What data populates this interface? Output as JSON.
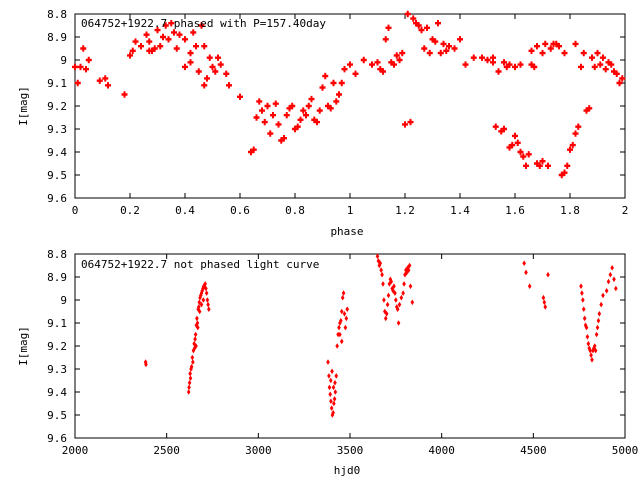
{
  "chart_data": [
    {
      "type": "scatter",
      "title": "064752+1922.7 phased with P=157.40day",
      "xlabel": "phase",
      "ylabel": "I[mag]",
      "xlim": [
        0,
        2
      ],
      "ylim": [
        8.8,
        9.6
      ],
      "y_inverted": true,
      "grid": false,
      "marker_color": "#ff0000",
      "marker": "cross-plus",
      "xticks": [
        "0",
        "0.2",
        "0.4",
        "0.6",
        "0.8",
        "1",
        "1.2",
        "1.4",
        "1.6",
        "1.8",
        "2"
      ],
      "yticks": [
        "8.8",
        "8.9",
        "9",
        "9.1",
        "9.2",
        "9.3",
        "9.4",
        "9.5",
        "9.6"
      ],
      "points": [
        [
          0.0,
          9.03
        ],
        [
          0.01,
          9.1
        ],
        [
          0.02,
          9.03
        ],
        [
          0.03,
          8.95
        ],
        [
          0.04,
          9.04
        ],
        [
          0.05,
          9.0
        ],
        [
          0.09,
          9.09
        ],
        [
          0.12,
          9.11
        ],
        [
          0.11,
          9.08
        ],
        [
          0.18,
          9.15
        ],
        [
          0.2,
          8.98
        ],
        [
          0.21,
          8.96
        ],
        [
          0.22,
          8.92
        ],
        [
          0.24,
          8.94
        ],
        [
          0.26,
          8.89
        ],
        [
          0.27,
          8.92
        ],
        [
          0.28,
          8.96
        ],
        [
          0.29,
          8.95
        ],
        [
          0.3,
          8.87
        ],
        [
          0.32,
          8.9
        ],
        [
          0.33,
          8.85
        ],
        [
          0.35,
          8.84
        ],
        [
          0.36,
          8.88
        ],
        [
          0.38,
          8.89
        ],
        [
          0.4,
          8.91
        ],
        [
          0.42,
          8.97
        ],
        [
          0.43,
          8.88
        ],
        [
          0.44,
          8.94
        ],
        [
          0.46,
          8.85
        ],
        [
          0.47,
          8.94
        ],
        [
          0.49,
          8.99
        ],
        [
          0.5,
          9.03
        ],
        [
          0.51,
          9.05
        ],
        [
          0.52,
          8.99
        ],
        [
          0.53,
          9.02
        ],
        [
          0.55,
          9.06
        ],
        [
          0.56,
          9.11
        ],
        [
          0.48,
          9.08
        ],
        [
          0.47,
          9.11
        ],
        [
          0.45,
          9.05
        ],
        [
          0.42,
          9.01
        ],
        [
          0.4,
          9.03
        ],
        [
          0.37,
          8.95
        ],
        [
          0.34,
          8.91
        ],
        [
          0.31,
          8.94
        ],
        [
          0.27,
          8.96
        ],
        [
          0.6,
          9.16
        ],
        [
          0.64,
          9.4
        ],
        [
          0.65,
          9.39
        ],
        [
          0.66,
          9.25
        ],
        [
          0.67,
          9.18
        ],
        [
          0.68,
          9.22
        ],
        [
          0.69,
          9.27
        ],
        [
          0.7,
          9.2
        ],
        [
          0.71,
          9.32
        ],
        [
          0.72,
          9.24
        ],
        [
          0.73,
          9.19
        ],
        [
          0.74,
          9.28
        ],
        [
          0.75,
          9.35
        ],
        [
          0.76,
          9.34
        ],
        [
          0.77,
          9.24
        ],
        [
          0.78,
          9.21
        ],
        [
          0.79,
          9.2
        ],
        [
          0.8,
          9.3
        ],
        [
          0.81,
          9.29
        ],
        [
          0.82,
          9.26
        ],
        [
          0.83,
          9.22
        ],
        [
          0.84,
          9.24
        ],
        [
          0.85,
          9.2
        ],
        [
          0.86,
          9.17
        ],
        [
          0.87,
          9.26
        ],
        [
          0.88,
          9.27
        ],
        [
          0.89,
          9.22
        ],
        [
          0.9,
          9.12
        ],
        [
          0.91,
          9.07
        ],
        [
          0.92,
          9.2
        ],
        [
          0.93,
          9.21
        ],
        [
          0.94,
          9.1
        ],
        [
          0.95,
          9.18
        ],
        [
          0.96,
          9.15
        ],
        [
          0.97,
          9.1
        ],
        [
          0.98,
          9.04
        ],
        [
          1.0,
          9.02
        ],
        [
          1.02,
          9.06
        ],
        [
          1.05,
          9.0
        ],
        [
          1.08,
          9.02
        ],
        [
          1.1,
          9.01
        ],
        [
          1.11,
          9.04
        ],
        [
          1.12,
          9.05
        ],
        [
          1.13,
          8.91
        ],
        [
          1.14,
          8.86
        ],
        [
          1.15,
          9.01
        ],
        [
          1.16,
          9.02
        ],
        [
          1.17,
          8.98
        ],
        [
          1.18,
          9.0
        ],
        [
          1.19,
          8.97
        ],
        [
          1.2,
          9.28
        ],
        [
          1.21,
          8.8
        ],
        [
          1.22,
          9.27
        ],
        [
          1.23,
          8.82
        ],
        [
          1.24,
          8.84
        ],
        [
          1.25,
          8.85
        ],
        [
          1.26,
          8.87
        ],
        [
          1.27,
          8.95
        ],
        [
          1.28,
          8.86
        ],
        [
          1.29,
          8.97
        ],
        [
          1.3,
          8.91
        ],
        [
          1.31,
          8.92
        ],
        [
          1.32,
          8.84
        ],
        [
          1.33,
          8.97
        ],
        [
          1.34,
          8.93
        ],
        [
          1.35,
          8.96
        ],
        [
          1.36,
          8.94
        ],
        [
          1.38,
          8.95
        ],
        [
          1.4,
          8.91
        ],
        [
          1.42,
          9.02
        ],
        [
          1.45,
          8.99
        ],
        [
          1.48,
          8.99
        ],
        [
          1.5,
          9.0
        ],
        [
          1.52,
          9.01
        ],
        [
          1.53,
          9.29
        ],
        [
          1.54,
          9.05
        ],
        [
          1.55,
          9.31
        ],
        [
          1.56,
          9.3
        ],
        [
          1.57,
          9.03
        ],
        [
          1.58,
          9.38
        ],
        [
          1.59,
          9.37
        ],
        [
          1.6,
          9.33
        ],
        [
          1.61,
          9.36
        ],
        [
          1.62,
          9.4
        ],
        [
          1.63,
          9.42
        ],
        [
          1.64,
          9.46
        ],
        [
          1.65,
          9.41
        ],
        [
          1.66,
          8.96
        ],
        [
          1.67,
          9.03
        ],
        [
          1.68,
          9.45
        ],
        [
          1.69,
          9.46
        ],
        [
          1.7,
          9.44
        ],
        [
          1.71,
          8.93
        ],
        [
          1.72,
          9.46
        ],
        [
          1.73,
          8.95
        ],
        [
          1.74,
          8.93
        ],
        [
          1.76,
          8.94
        ],
        [
          1.77,
          9.5
        ],
        [
          1.78,
          9.49
        ],
        [
          1.79,
          9.46
        ],
        [
          1.8,
          9.39
        ],
        [
          1.81,
          9.37
        ],
        [
          1.82,
          9.32
        ],
        [
          1.83,
          9.29
        ],
        [
          1.84,
          9.03
        ],
        [
          1.85,
          8.97
        ],
        [
          1.86,
          9.22
        ],
        [
          1.87,
          9.21
        ],
        [
          1.88,
          8.99
        ],
        [
          1.89,
          9.03
        ],
        [
          1.9,
          8.97
        ],
        [
          1.91,
          9.02
        ],
        [
          1.92,
          8.99
        ],
        [
          1.93,
          9.04
        ],
        [
          1.94,
          9.01
        ],
        [
          1.95,
          9.02
        ],
        [
          1.96,
          9.05
        ],
        [
          1.97,
          9.06
        ],
        [
          1.98,
          9.1
        ],
        [
          1.99,
          9.08
        ],
        [
          1.52,
          8.99
        ],
        [
          1.56,
          9.01
        ],
        [
          1.58,
          9.02
        ],
        [
          1.62,
          9.02
        ],
        [
          1.68,
          8.94
        ],
        [
          1.7,
          8.97
        ],
        [
          1.75,
          8.93
        ],
        [
          1.78,
          8.97
        ],
        [
          1.82,
          8.93
        ],
        [
          1.6,
          9.03
        ],
        [
          1.66,
          9.02
        ]
      ]
    },
    {
      "type": "scatter",
      "title": "064752+1922.7 not phased light curve",
      "xlabel": "hjd0",
      "ylabel": "I[mag]",
      "xlim": [
        2000,
        5000
      ],
      "ylim": [
        8.8,
        9.6
      ],
      "y_inverted": true,
      "grid": false,
      "marker_color": "#ff0000",
      "marker": "diamond",
      "xticks": [
        "2000",
        "2500",
        "3000",
        "3500",
        "4000",
        "4500",
        "5000"
      ],
      "yticks": [
        "8.8",
        "8.9",
        "9",
        "9.1",
        "9.2",
        "9.3",
        "9.4",
        "9.5",
        "9.6"
      ],
      "points": [
        [
          2385,
          9.27
        ],
        [
          2387,
          9.28
        ],
        [
          2620,
          9.4
        ],
        [
          2622,
          9.38
        ],
        [
          2625,
          9.36
        ],
        [
          2628,
          9.32
        ],
        [
          2630,
          9.34
        ],
        [
          2633,
          9.3
        ],
        [
          2636,
          9.29
        ],
        [
          2640,
          9.25
        ],
        [
          2643,
          9.27
        ],
        [
          2646,
          9.22
        ],
        [
          2650,
          9.19
        ],
        [
          2652,
          9.21
        ],
        [
          2655,
          9.17
        ],
        [
          2658,
          9.15
        ],
        [
          2662,
          9.11
        ],
        [
          2665,
          9.08
        ],
        [
          2668,
          9.1
        ],
        [
          2672,
          9.04
        ],
        [
          2675,
          9.03
        ],
        [
          2678,
          9.01
        ],
        [
          2682,
          8.99
        ],
        [
          2686,
          8.98
        ],
        [
          2690,
          8.97
        ],
        [
          2694,
          8.96
        ],
        [
          2698,
          8.95
        ],
        [
          2702,
          8.94
        ],
        [
          2706,
          8.94
        ],
        [
          2710,
          8.93
        ],
        [
          2714,
          8.95
        ],
        [
          2718,
          8.97
        ],
        [
          2722,
          9.0
        ],
        [
          2726,
          9.02
        ],
        [
          2730,
          9.04
        ],
        [
          2700,
          9.0
        ],
        [
          2690,
          9.02
        ],
        [
          2680,
          9.05
        ],
        [
          2670,
          9.12
        ],
        [
          2660,
          9.2
        ],
        [
          3380,
          9.27
        ],
        [
          3385,
          9.33
        ],
        [
          3388,
          9.38
        ],
        [
          3392,
          9.41
        ],
        [
          3396,
          9.44
        ],
        [
          3400,
          9.47
        ],
        [
          3404,
          9.5
        ],
        [
          3408,
          9.49
        ],
        [
          3412,
          9.45
        ],
        [
          3416,
          9.43
        ],
        [
          3420,
          9.4
        ],
        [
          3425,
          9.33
        ],
        [
          3430,
          9.2
        ],
        [
          3435,
          9.15
        ],
        [
          3440,
          9.12
        ],
        [
          3445,
          9.1
        ],
        [
          3450,
          9.09
        ],
        [
          3455,
          9.05
        ],
        [
          3460,
          8.99
        ],
        [
          3465,
          8.97
        ],
        [
          3470,
          9.06
        ],
        [
          3475,
          9.12
        ],
        [
          3480,
          9.08
        ],
        [
          3485,
          9.04
        ],
        [
          3395,
          9.35
        ],
        [
          3402,
          9.31
        ],
        [
          3410,
          9.38
        ],
        [
          3418,
          9.36
        ],
        [
          3445,
          9.15
        ],
        [
          3455,
          9.18
        ],
        [
          3650,
          8.81
        ],
        [
          3655,
          8.83
        ],
        [
          3660,
          8.85
        ],
        [
          3665,
          8.84
        ],
        [
          3670,
          8.87
        ],
        [
          3675,
          8.89
        ],
        [
          3680,
          8.93
        ],
        [
          3685,
          9.0
        ],
        [
          3690,
          9.05
        ],
        [
          3695,
          9.08
        ],
        [
          3700,
          9.06
        ],
        [
          3705,
          9.02
        ],
        [
          3710,
          8.98
        ],
        [
          3715,
          8.93
        ],
        [
          3720,
          8.91
        ],
        [
          3725,
          8.92
        ],
        [
          3730,
          8.95
        ],
        [
          3735,
          8.96
        ],
        [
          3740,
          8.94
        ],
        [
          3745,
          8.97
        ],
        [
          3750,
          9.0
        ],
        [
          3755,
          9.03
        ],
        [
          3760,
          9.04
        ],
        [
          3765,
          9.1
        ],
        [
          3770,
          9.02
        ],
        [
          3780,
          8.99
        ],
        [
          3790,
          8.97
        ],
        [
          3795,
          8.93
        ],
        [
          3800,
          8.89
        ],
        [
          3805,
          8.87
        ],
        [
          3810,
          8.88
        ],
        [
          3815,
          8.86
        ],
        [
          3820,
          8.87
        ],
        [
          3825,
          8.85
        ],
        [
          3830,
          8.94
        ],
        [
          3840,
          9.01
        ],
        [
          4450,
          8.84
        ],
        [
          4460,
          8.88
        ],
        [
          4480,
          8.94
        ],
        [
          4555,
          8.99
        ],
        [
          4560,
          9.01
        ],
        [
          4565,
          9.03
        ],
        [
          4580,
          8.89
        ],
        [
          4760,
          8.94
        ],
        [
          4765,
          8.97
        ],
        [
          4770,
          9.0
        ],
        [
          4775,
          9.04
        ],
        [
          4780,
          9.08
        ],
        [
          4785,
          9.11
        ],
        [
          4790,
          9.12
        ],
        [
          4795,
          9.16
        ],
        [
          4800,
          9.19
        ],
        [
          4805,
          9.21
        ],
        [
          4810,
          9.22
        ],
        [
          4815,
          9.24
        ],
        [
          4820,
          9.26
        ],
        [
          4825,
          9.22
        ],
        [
          4830,
          9.21
        ],
        [
          4835,
          9.2
        ],
        [
          4840,
          9.22
        ],
        [
          4845,
          9.15
        ],
        [
          4850,
          9.12
        ],
        [
          4855,
          9.09
        ],
        [
          4860,
          9.06
        ],
        [
          4870,
          9.02
        ],
        [
          4880,
          8.98
        ],
        [
          4900,
          8.96
        ],
        [
          4910,
          8.92
        ],
        [
          4920,
          8.89
        ],
        [
          4930,
          8.86
        ],
        [
          4940,
          8.91
        ],
        [
          4950,
          8.95
        ]
      ]
    }
  ]
}
